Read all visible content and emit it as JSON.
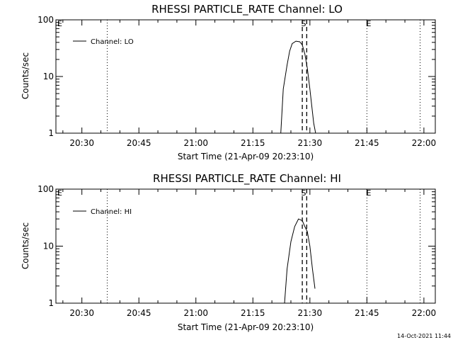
{
  "timestamp": "14-Oct-2021 11:44",
  "chart_data": [
    {
      "type": "line",
      "title": "RHESSI PARTICLE_RATE Channel: LO",
      "xlabel": "Start Time (21-Apr-09 20:23:10)",
      "ylabel": "Counts/sec",
      "yscale": "log",
      "ylim": [
        1,
        100
      ],
      "xlim": [
        "20:23:10",
        "22:03:00"
      ],
      "xticks": [
        "20:30",
        "20:45",
        "21:00",
        "21:15",
        "21:30",
        "21:45",
        "22:00"
      ],
      "yticks": [
        "1",
        "10",
        "100"
      ],
      "legend": {
        "position": "top-left",
        "entries": [
          "Channel: LO"
        ]
      },
      "series": [
        {
          "name": "Channel: LO",
          "x": [
            "21:22:20",
            "21:23:00",
            "21:24:00",
            "21:24:40",
            "21:25:20",
            "21:26:20",
            "21:27:20",
            "21:28:00",
            "21:28:40",
            "21:29:20",
            "21:30:00",
            "21:30:30",
            "21:31:00",
            "21:31:30"
          ],
          "values": [
            1,
            6,
            16,
            28,
            38,
            42,
            41,
            36,
            25,
            14,
            6,
            3,
            1.5,
            1
          ]
        }
      ],
      "markers": [
        {
          "time": "20:36:40",
          "label": "",
          "style": "dotted"
        },
        {
          "time": "21:45:00",
          "label": "E",
          "style": "dotted"
        },
        {
          "time": "21:59:00",
          "label": "",
          "style": "dotted"
        },
        {
          "time": "21:28:00",
          "label": "S",
          "style": "dashed"
        },
        {
          "time": "21:29:10",
          "label": "",
          "style": "dashed"
        }
      ],
      "corner_label": "E"
    },
    {
      "type": "line",
      "title": "RHESSI PARTICLE_RATE Channel: HI",
      "xlabel": "Start Time (21-Apr-09 20:23:10)",
      "ylabel": "Counts/sec",
      "yscale": "log",
      "ylim": [
        1,
        100
      ],
      "xlim": [
        "20:23:10",
        "22:03:00"
      ],
      "xticks": [
        "20:30",
        "20:45",
        "21:00",
        "21:15",
        "21:30",
        "21:45",
        "22:00"
      ],
      "yticks": [
        "1",
        "10",
        "100"
      ],
      "legend": {
        "position": "top-left",
        "entries": [
          "Channel: HI"
        ]
      },
      "series": [
        {
          "name": "Channel: HI",
          "x": [
            "21:23:20",
            "21:24:00",
            "21:25:00",
            "21:26:00",
            "21:27:00",
            "21:28:00",
            "21:28:40",
            "21:29:20",
            "21:30:00",
            "21:30:40",
            "21:31:20"
          ],
          "values": [
            1,
            4,
            12,
            22,
            30,
            28,
            22,
            18,
            10,
            4,
            1.8
          ]
        }
      ],
      "markers": [
        {
          "time": "20:36:40",
          "label": "",
          "style": "dotted"
        },
        {
          "time": "21:45:00",
          "label": "E",
          "style": "dotted"
        },
        {
          "time": "21:59:00",
          "label": "",
          "style": "dotted"
        },
        {
          "time": "21:28:00",
          "label": "S",
          "style": "dashed"
        },
        {
          "time": "21:29:10",
          "label": "",
          "style": "dashed"
        }
      ],
      "corner_label": "E"
    }
  ]
}
